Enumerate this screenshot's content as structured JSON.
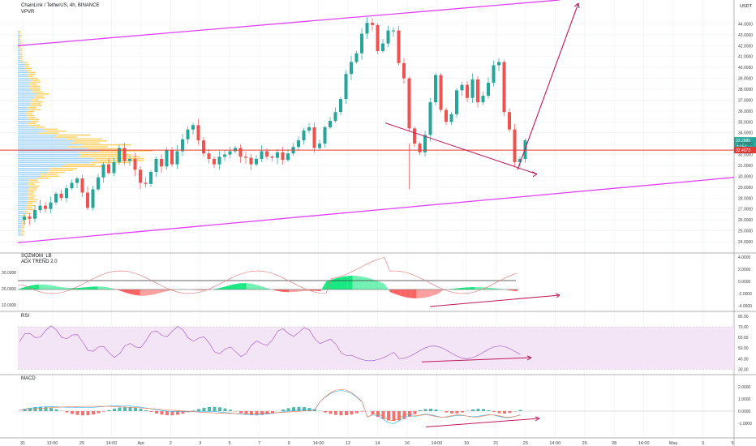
{
  "header": {
    "symbol_line": "ChainLink / TetherUS, 4h, BINANCE",
    "indicator": "VPVR"
  },
  "currency": "USDT",
  "price_tags": {
    "last": "33.2985",
    "countdown": "47:57",
    "level": "32.4073"
  },
  "panels": {
    "sqz_title": "SQZMOM_LB",
    "adx_title": "ADX TREND 2.0",
    "rsi_title": "RSI",
    "macd_title": "MACD"
  },
  "colors": {
    "up": "#26a69a",
    "down": "#ef5350",
    "channel": "#e040fb",
    "arrow": "#c2185b",
    "level": "#e53935",
    "vp_up": "#90caf9",
    "vp_down": "#ffc94a",
    "sqz_green": "#00e676",
    "sqz_red": "#ff5252",
    "rsi_band": "#f3e5f5"
  },
  "chart_data": [
    {
      "type": "candlestick",
      "title": "ChainLink / TetherUS, 4h, BINANCE",
      "y_axis_unit": "USDT",
      "y_ticks": [
        "44.0000",
        "43.0000",
        "42.0000",
        "41.0000",
        "40.0000",
        "39.0000",
        "38.0000",
        "37.0000",
        "36.0000",
        "35.0000",
        "34.0000",
        "33.0000",
        "32.0000",
        "31.0000",
        "30.0000",
        "29.0000",
        "28.0000",
        "27.0000",
        "26.0000",
        "25.0000",
        "24.0000"
      ],
      "y_range": [
        23.4,
        45.6
      ],
      "x_ticks": [
        "31",
        "13:00",
        "29",
        "14:00",
        "Apr",
        "2",
        "3",
        "5",
        "7",
        "9",
        "14:00",
        "12",
        "14",
        "16",
        "14:00",
        "19",
        "21",
        "23",
        "14:00",
        "26",
        "28",
        "14:00",
        "May",
        "3",
        "5"
      ],
      "price_anchors": [
        26.3,
        26.1,
        26.9,
        27.3,
        27.0,
        27.6,
        28.4,
        28.0,
        28.9,
        29.4,
        29.8,
        28.5,
        27.1,
        28.8,
        29.9,
        31.1,
        30.3,
        31.3,
        32.6,
        31.4,
        31.6,
        30.6,
        29.4,
        29.3,
        30.4,
        31.6,
        30.9,
        32.4,
        31.1,
        32.3,
        33.4,
        34.3,
        34.7,
        33.3,
        32.1,
        31.6,
        31.1,
        31.8,
        32.0,
        32.3,
        32.6,
        31.8,
        31.7,
        31.1,
        31.6,
        32.3,
        31.8,
        31.7,
        32.2,
        31.5,
        32.1,
        32.7,
        33.3,
        34.2,
        34.5,
        32.6,
        33.0,
        34.5,
        35.1,
        35.9,
        37.1,
        39.4,
        40.5,
        41.3,
        43.1,
        44.1,
        43.9,
        41.5,
        42.2,
        43.4,
        43.4,
        40.4,
        39.0,
        34.4,
        33.0,
        32.2,
        33.8,
        36.8,
        39.3,
        36.1,
        35.0,
        35.7,
        37.9,
        38.4,
        37.2,
        38.9,
        36.8,
        37.4,
        38.6,
        40.2,
        40.5,
        35.9,
        34.3,
        31.3,
        31.6,
        33.3
      ],
      "support_level": 32.4073,
      "last_price": 33.2985,
      "channel_upper": [
        [
          0,
          42.0
        ],
        [
          120,
          46.9
        ]
      ],
      "channel_lower": [
        [
          0,
          23.9
        ],
        [
          120,
          29.4
        ]
      ]
    },
    {
      "type": "area",
      "title": "SQZMOM_LB / ADX TREND 2.0",
      "y_ticks_right": [
        "4.0000",
        "2.0000",
        "0.0000",
        "-2.0000",
        "-4.0000"
      ],
      "y_ticks_left": [
        "30.0000",
        "20.0000",
        "10.0000"
      ]
    },
    {
      "type": "line",
      "title": "RSI",
      "y_ticks": [
        "80.00",
        "70.00",
        "60.00",
        "50.00",
        "40.00",
        "30.00"
      ],
      "y_range": [
        28,
        80
      ],
      "band": [
        30,
        70
      ]
    },
    {
      "type": "bar",
      "title": "MACD",
      "y_ticks": [
        "2.0000",
        "1.0000",
        "0.0000",
        "-1.0000"
      ],
      "y_range": [
        -1.8,
        2.6
      ]
    }
  ]
}
